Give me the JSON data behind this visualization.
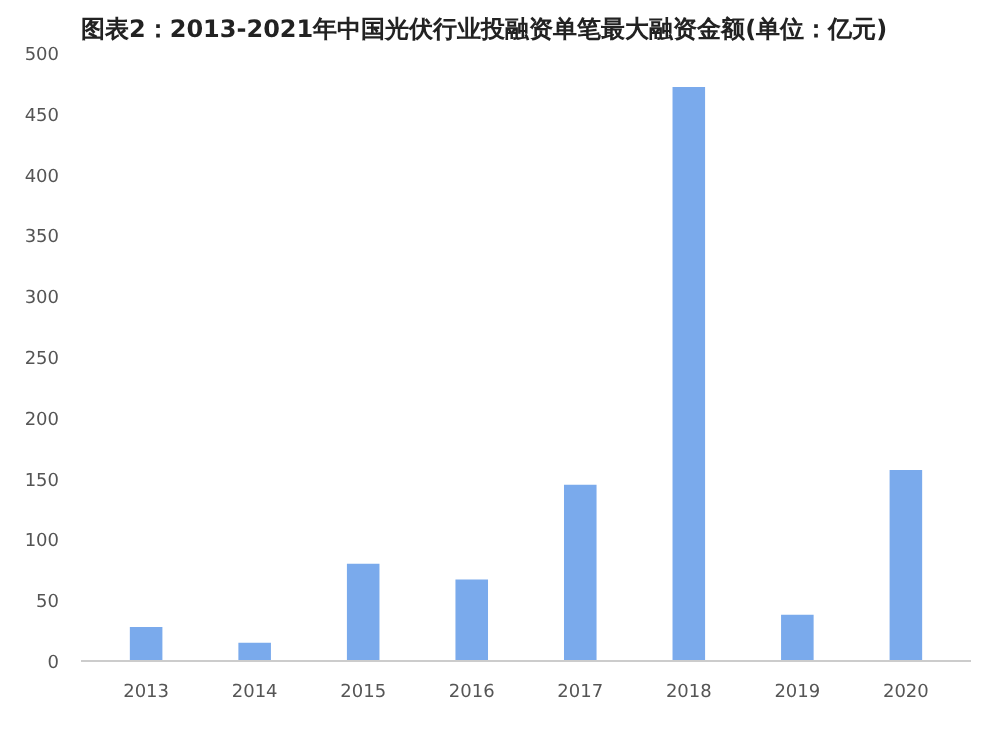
{
  "chart_data": {
    "type": "bar",
    "title": "图表2：2013-2021年中国光伏行业投融资单笔最大融资金额(单位：亿元)",
    "categories": [
      "2013",
      "2014",
      "2015",
      "2016",
      "2017",
      "2018",
      "2019",
      "2020"
    ],
    "values": [
      28,
      15,
      80,
      67,
      145,
      472,
      38,
      157
    ],
    "color": "#7aaaec",
    "ylim": [
      0,
      500
    ],
    "yticks": [
      0,
      50,
      100,
      150,
      200,
      250,
      300,
      350,
      400,
      450,
      500
    ],
    "grid": false
  }
}
